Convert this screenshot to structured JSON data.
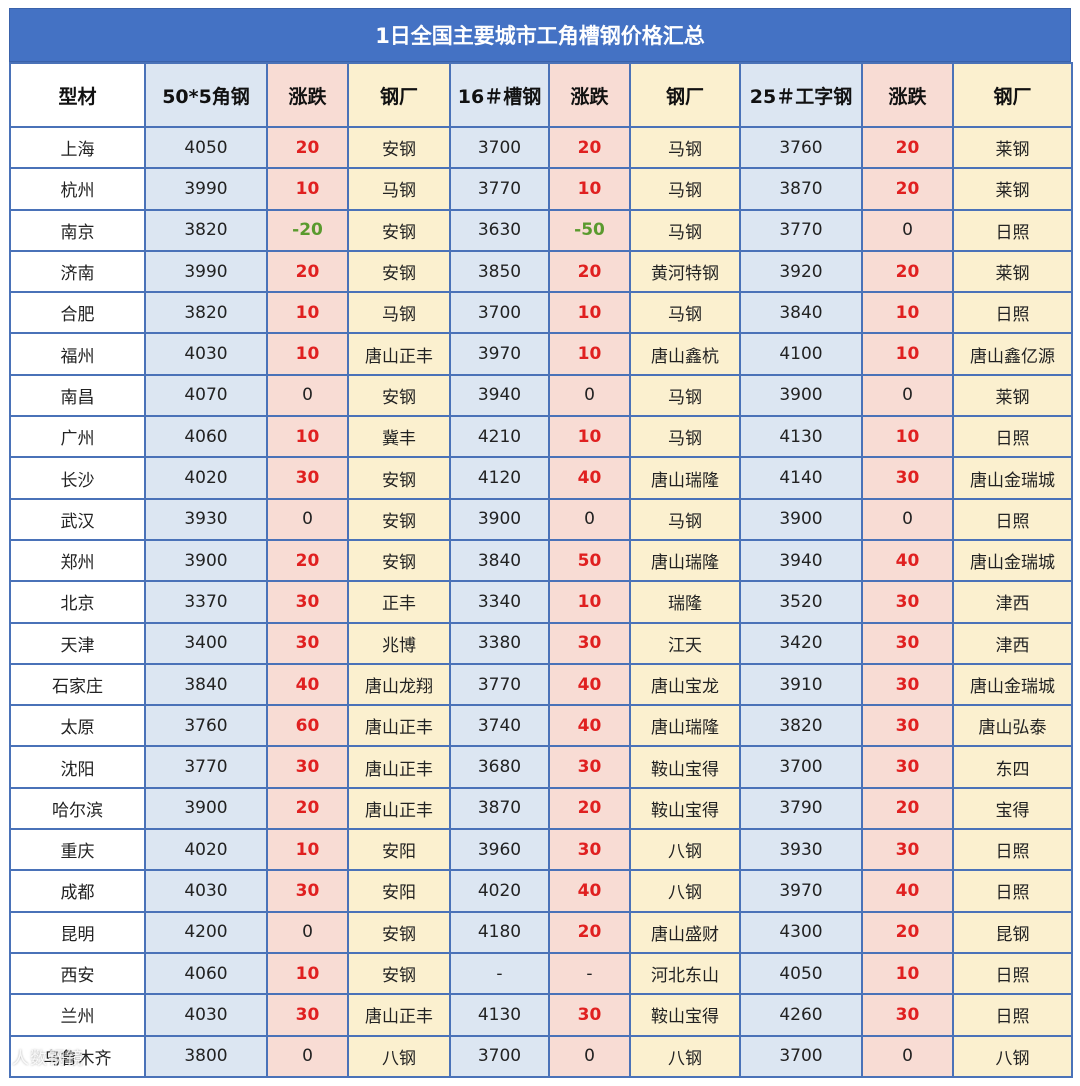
{
  "title": "1日全国主要城市工角槽钢价格汇总",
  "headers": [
    "型材",
    "50*5角钢",
    "涨跌",
    "钢厂",
    "16＃槽钢",
    "涨跌",
    "钢厂",
    "25＃工字钢",
    "涨跌",
    "钢厂"
  ],
  "colors": {
    "header_bg": "#4472c4",
    "price_bg": "#dce6f2",
    "change_bg": "#f8dcd4",
    "mill_bg": "#fbf0cf",
    "up": "#e02020",
    "down": "#5a9a2e",
    "grid": "#4a72b8"
  },
  "rows": [
    [
      "上海",
      "4050",
      "20",
      "安钢",
      "3700",
      "20",
      "马钢",
      "3760",
      "20",
      "莱钢"
    ],
    [
      "杭州",
      "3990",
      "10",
      "马钢",
      "3770",
      "10",
      "马钢",
      "3870",
      "20",
      "莱钢"
    ],
    [
      "南京",
      "3820",
      "-20",
      "安钢",
      "3630",
      "-50",
      "马钢",
      "3770",
      "0",
      "日照"
    ],
    [
      "济南",
      "3990",
      "20",
      "安钢",
      "3850",
      "20",
      "黄河特钢",
      "3920",
      "20",
      "莱钢"
    ],
    [
      "合肥",
      "3820",
      "10",
      "马钢",
      "3700",
      "10",
      "马钢",
      "3840",
      "10",
      "日照"
    ],
    [
      "福州",
      "4030",
      "10",
      "唐山正丰",
      "3970",
      "10",
      "唐山鑫杭",
      "4100",
      "10",
      "唐山鑫亿源"
    ],
    [
      "南昌",
      "4070",
      "0",
      "安钢",
      "3940",
      "0",
      "马钢",
      "3900",
      "0",
      "莱钢"
    ],
    [
      "广州",
      "4060",
      "10",
      "冀丰",
      "4210",
      "10",
      "马钢",
      "4130",
      "10",
      "日照"
    ],
    [
      "长沙",
      "4020",
      "30",
      "安钢",
      "4120",
      "40",
      "唐山瑞隆",
      "4140",
      "30",
      "唐山金瑞城"
    ],
    [
      "武汉",
      "3930",
      "0",
      "安钢",
      "3900",
      "0",
      "马钢",
      "3900",
      "0",
      "日照"
    ],
    [
      "郑州",
      "3900",
      "20",
      "安钢",
      "3840",
      "50",
      "唐山瑞隆",
      "3940",
      "40",
      "唐山金瑞城"
    ],
    [
      "北京",
      "3370",
      "30",
      "正丰",
      "3340",
      "10",
      "瑞隆",
      "3520",
      "30",
      "津西"
    ],
    [
      "天津",
      "3400",
      "30",
      "兆博",
      "3380",
      "30",
      "江天",
      "3420",
      "30",
      "津西"
    ],
    [
      "石家庄",
      "3840",
      "40",
      "唐山龙翔",
      "3770",
      "40",
      "唐山宝龙",
      "3910",
      "30",
      "唐山金瑞城"
    ],
    [
      "太原",
      "3760",
      "60",
      "唐山正丰",
      "3740",
      "40",
      "唐山瑞隆",
      "3820",
      "30",
      "唐山弘泰"
    ],
    [
      "沈阳",
      "3770",
      "30",
      "唐山正丰",
      "3680",
      "30",
      "鞍山宝得",
      "3700",
      "30",
      "东四"
    ],
    [
      "哈尔滨",
      "3900",
      "20",
      "唐山正丰",
      "3870",
      "20",
      "鞍山宝得",
      "3790",
      "20",
      "宝得"
    ],
    [
      "重庆",
      "4020",
      "10",
      "安阳",
      "3960",
      "30",
      "八钢",
      "3930",
      "30",
      "日照"
    ],
    [
      "成都",
      "4030",
      "30",
      "安阳",
      "4020",
      "40",
      "八钢",
      "3970",
      "40",
      "日照"
    ],
    [
      "昆明",
      "4200",
      "0",
      "安钢",
      "4180",
      "20",
      "唐山盛财",
      "4300",
      "20",
      "昆钢"
    ],
    [
      "西安",
      "4060",
      "10",
      "安钢",
      "-",
      "-",
      "河北东山",
      "4050",
      "10",
      "日照"
    ],
    [
      "兰州",
      "4030",
      "30",
      "唐山正丰",
      "4130",
      "30",
      "鞍山宝得",
      "4260",
      "30",
      "日照"
    ],
    [
      "乌鲁木齐",
      "3800",
      "0",
      "八钢",
      "3700",
      "0",
      "八钢",
      "3700",
      "0",
      "八钢"
    ]
  ],
  "watermark": "人数钢镜"
}
